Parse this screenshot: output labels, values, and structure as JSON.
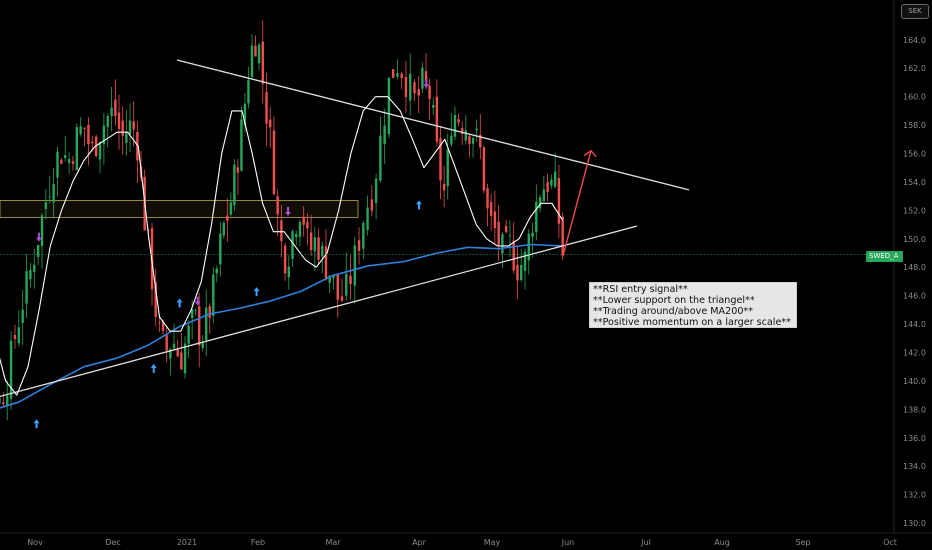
{
  "chart_data": {
    "type": "candlestick",
    "symbol": "SWED_A",
    "currency": "SEK",
    "last_price_label": "SWED_A",
    "x_axis_labels": [
      "Nov",
      "Dec",
      "2021",
      "Feb",
      "Mar",
      "Apr",
      "May",
      "Jun",
      "Jul",
      "Aug",
      "Sep",
      "Oct"
    ],
    "y_axis_ticks": [
      130,
      132,
      134,
      136,
      138,
      140,
      142,
      144,
      146,
      148,
      150,
      152,
      154,
      156,
      158,
      160,
      162,
      164
    ],
    "ylim": [
      129.3,
      166.8
    ],
    "grid": false,
    "series": [
      {
        "name": "price",
        "type": "candlestick"
      },
      {
        "name": "MA200",
        "type": "line",
        "color": "#2f7fdc"
      },
      {
        "name": "short MA",
        "type": "line",
        "color": "#ffffff"
      }
    ],
    "close_path": [
      149.5,
      148,
      146,
      144,
      142,
      140,
      138.5,
      140,
      143,
      145.5,
      147.5,
      150,
      152.5,
      155,
      156.2,
      155.5,
      157,
      158,
      156,
      157.5,
      158.5,
      159,
      157,
      158,
      157.5,
      152,
      148,
      143.5,
      142,
      143,
      141.5,
      143,
      144.5,
      143,
      144.5,
      147,
      150.5,
      152,
      155,
      158.5,
      163,
      164.5,
      160,
      156,
      150,
      148.5,
      151,
      152.5,
      149,
      150,
      148.5,
      147.5,
      145.5,
      146.5,
      149,
      152,
      153.5,
      157.5,
      161.5,
      162.5,
      161,
      159.5,
      161,
      160,
      155.5,
      153,
      159,
      158.5,
      158,
      157.5,
      156,
      151.5,
      150.5,
      149,
      149.5,
      148,
      148.5,
      151.5,
      153.5,
      154,
      153.5,
      149
    ],
    "short_ma_path": [
      145,
      147,
      146,
      143,
      140,
      139,
      141,
      145,
      149.5,
      152,
      154,
      155.5,
      156.5,
      157,
      157.5,
      157.5,
      156.5,
      150,
      144.5,
      143.5,
      143.5,
      145,
      147,
      151,
      156,
      159,
      159,
      156,
      152.5,
      150.5,
      150.5,
      149.5,
      148.5,
      148,
      149,
      152,
      156,
      159,
      160,
      160,
      159,
      157,
      155,
      156,
      157,
      155,
      153,
      151,
      150,
      149.5,
      149.5,
      150,
      151.5,
      152.5,
      152.5,
      151.3
    ],
    "ma200_path": [
      137.2,
      137.8,
      138.5,
      139.8,
      141,
      141.6,
      142.5,
      143.8,
      144.7,
      145.1,
      145.6,
      146.3,
      147.4,
      148.1,
      148.4,
      149,
      149.4,
      149.3,
      149.6,
      149.5
    ],
    "resistance_line": {
      "from": [
        "Oct 2020",
        166.5
      ],
      "to": [
        "Jun 2021",
        155.6
      ]
    },
    "support_line": {
      "from": [
        "Oct 2020",
        138.1
      ],
      "to": [
        "Jun 2021",
        149.6
      ]
    },
    "resistance_zone": [
      151.5,
      152.7
    ],
    "signal_up_arrows": [
      "Nov",
      "Dec",
      "Jan",
      "Feb",
      "Apr"
    ],
    "signal_down_arrows": [
      "Nov",
      "Jan",
      "Feb",
      "Apr"
    ],
    "annotation_lines": [
      "**RSI entry signal**",
      "**Lower support on the triangel**",
      "**Trading around/above MA200**",
      "**Positive momentum on a larger scale**"
    ],
    "colors": {
      "background": "#000000",
      "up_candle": "#26a65b",
      "down_candle": "#ef4f4f",
      "trend_lines": "#e0e0e0",
      "ma200": "#2f7fdc",
      "short_ma": "#ffffff",
      "zone": "#b9a74a",
      "projection_arrow": "#f04a4a",
      "signal_up": "#3ea0ff",
      "signal_down": "#b14bd6"
    }
  }
}
